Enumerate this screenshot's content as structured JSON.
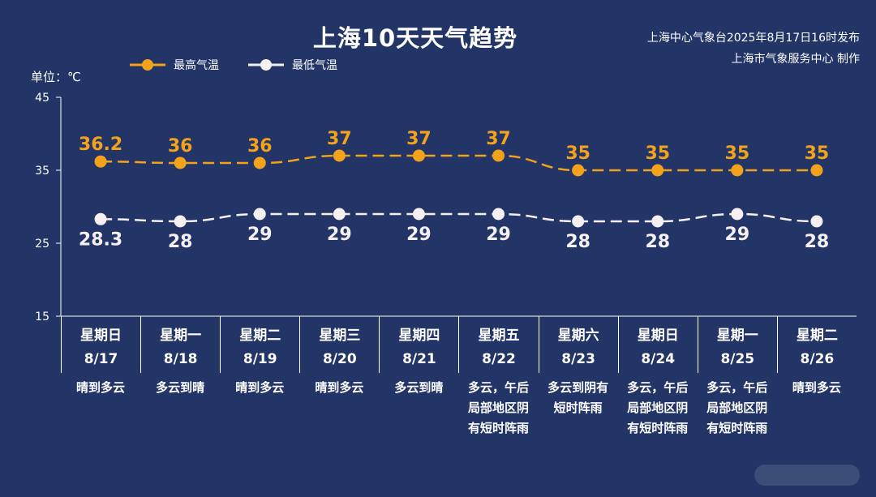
{
  "colors": {
    "background": "#223566",
    "high": "#f2a31b",
    "low": "#f7f0f2",
    "axis": "#ffffff"
  },
  "header": {
    "title": "上海10天天气趋势",
    "source_line1": "上海中心气象台2025年8月17日16时发布",
    "source_line2": "上海市气象服务中心 制作"
  },
  "legend": {
    "high": "最高气温",
    "low": "最低气温"
  },
  "unit": "单位：℃",
  "chart_data": {
    "type": "line",
    "title": "上海10天天气趋势",
    "ylim": [
      15,
      45
    ],
    "yticks": [
      15,
      25,
      35,
      45
    ],
    "legend_position": "top-left",
    "categories": [
      "8/17",
      "8/18",
      "8/19",
      "8/20",
      "8/21",
      "8/22",
      "8/23",
      "8/24",
      "8/25",
      "8/26"
    ],
    "series": [
      {
        "name": "最高气温",
        "values": [
          36.2,
          36,
          36,
          37,
          37,
          37,
          35,
          35,
          35,
          35
        ]
      },
      {
        "name": "最低气温",
        "values": [
          28.3,
          28,
          29,
          29,
          29,
          29,
          28,
          28,
          29,
          28
        ]
      }
    ]
  },
  "days": [
    {
      "dow": "星期日",
      "date": "8/17",
      "weather": "晴到多云"
    },
    {
      "dow": "星期一",
      "date": "8/18",
      "weather": "多云到晴"
    },
    {
      "dow": "星期二",
      "date": "8/19",
      "weather": "晴到多云"
    },
    {
      "dow": "星期三",
      "date": "8/20",
      "weather": "晴到多云"
    },
    {
      "dow": "星期四",
      "date": "8/21",
      "weather": "多云到晴"
    },
    {
      "dow": "星期五",
      "date": "8/22",
      "weather": "多云，午后\n局部地区阴\n有短时阵雨"
    },
    {
      "dow": "星期六",
      "date": "8/23",
      "weather": "多云到阴有\n短时阵雨"
    },
    {
      "dow": "星期日",
      "date": "8/24",
      "weather": "多云，午后\n局部地区阴\n有短时阵雨"
    },
    {
      "dow": "星期一",
      "date": "8/25",
      "weather": "多云，午后\n局部地区阴\n有短时阵雨"
    },
    {
      "dow": "星期二",
      "date": "8/26",
      "weather": "晴到多云"
    }
  ]
}
